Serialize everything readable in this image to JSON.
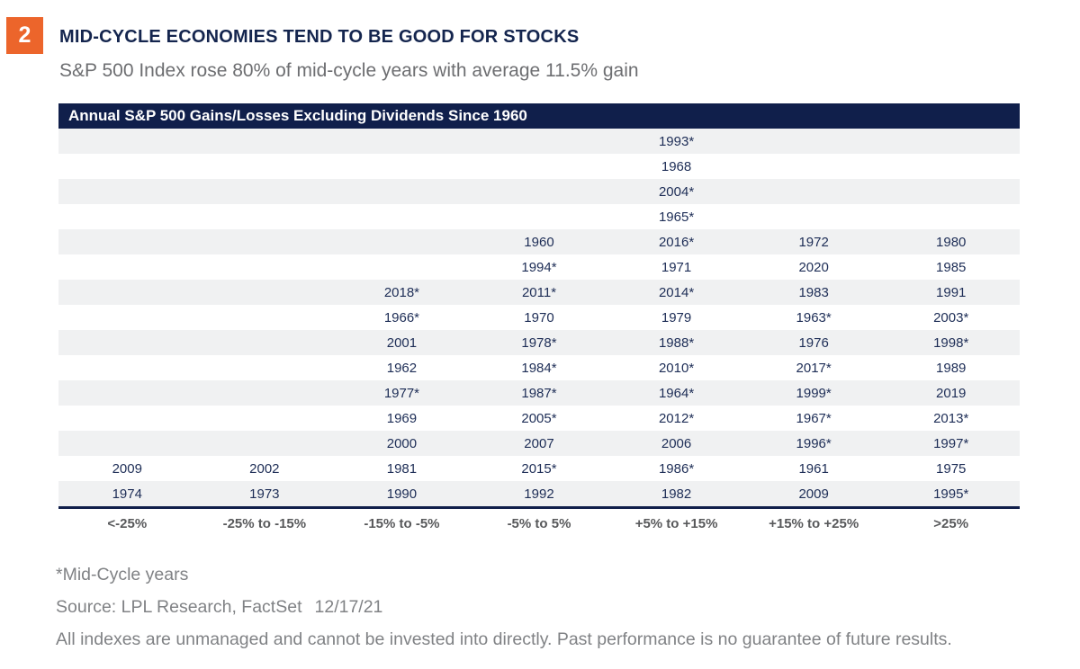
{
  "badge": {
    "number": "2"
  },
  "header": {
    "title": "MID-CYCLE ECONOMIES TEND TO BE GOOD FOR STOCKS",
    "subtitle": "S&P 500 Index rose 80% of mid-cycle years with average 11.5% gain"
  },
  "table": {
    "header": "Annual S&P 500 Gains/Losses Excluding Dividends Since 1960"
  },
  "chart_data": {
    "type": "table",
    "title": "Annual S&P 500 Gains/Losses Excluding Dividends Since 1960",
    "note": "* denotes Mid-Cycle years",
    "bin_labels": [
      "<-25%",
      "-25% to -15%",
      "-15% to -5%",
      "-5% to 5%",
      "+5% to +15%",
      "+15% to +25%",
      ">25%"
    ],
    "grid": [
      [
        "",
        "",
        "",
        "",
        "1993*",
        "",
        ""
      ],
      [
        "",
        "",
        "",
        "",
        "1968",
        "",
        ""
      ],
      [
        "",
        "",
        "",
        "",
        "2004*",
        "",
        ""
      ],
      [
        "",
        "",
        "",
        "",
        "1965*",
        "",
        ""
      ],
      [
        "",
        "",
        "",
        "1960",
        "2016*",
        "1972",
        "1980"
      ],
      [
        "",
        "",
        "",
        "1994*",
        "1971",
        "2020",
        "1985"
      ],
      [
        "",
        "",
        "2018*",
        "2011*",
        "2014*",
        "1983",
        "1991"
      ],
      [
        "",
        "",
        "1966*",
        "1970",
        "1979",
        "1963*",
        "2003*"
      ],
      [
        "",
        "",
        "2001",
        "1978*",
        "1988*",
        "1976",
        "1998*"
      ],
      [
        "",
        "",
        "1962",
        "1984*",
        "2010*",
        "2017*",
        "1989"
      ],
      [
        "",
        "",
        "1977*",
        "1987*",
        "1964*",
        "1999*",
        "2019"
      ],
      [
        "",
        "",
        "1969",
        "2005*",
        "2012*",
        "1967*",
        "2013*"
      ],
      [
        "",
        "",
        "2000",
        "2007",
        "2006",
        "1996*",
        "1997*"
      ],
      [
        "2009",
        "2002",
        "1981",
        "2015*",
        "1986*",
        "1961",
        "1975"
      ],
      [
        "1974",
        "1973",
        "1990",
        "1992",
        "1982",
        "2009",
        "1995*"
      ]
    ],
    "bins": [
      {
        "label": "<-25%",
        "years": [
          "2009",
          "1974"
        ]
      },
      {
        "label": "-25% to -15%",
        "years": [
          "2002",
          "1973"
        ]
      },
      {
        "label": "-15% to -5%",
        "years": [
          "2018*",
          "1966*",
          "2001",
          "1962",
          "1977*",
          "1969",
          "2000",
          "1981",
          "1990"
        ]
      },
      {
        "label": "-5% to 5%",
        "years": [
          "1960",
          "1994*",
          "2011*",
          "1970",
          "1978*",
          "1984*",
          "1987*",
          "2005*",
          "2007",
          "2015*",
          "1992"
        ]
      },
      {
        "label": "+5% to +15%",
        "years": [
          "1993*",
          "1968",
          "2004*",
          "1965*",
          "2016*",
          "1971",
          "2014*",
          "1979",
          "1988*",
          "2010*",
          "1964*",
          "2012*",
          "2006",
          "1986*",
          "1982"
        ]
      },
      {
        "label": "+15% to +25%",
        "years": [
          "1972",
          "2020",
          "1983",
          "1963*",
          "1976",
          "2017*",
          "1999*",
          "1967*",
          "1996*",
          "1961",
          "2009"
        ]
      },
      {
        "label": ">25%",
        "years": [
          "1980",
          "1985",
          "1991",
          "2003*",
          "1998*",
          "1989",
          "2019",
          "2013*",
          "1997*",
          "1975",
          "1995*"
        ]
      }
    ],
    "legend_position": "none",
    "grid_lines": "row-stripes"
  },
  "footnotes": {
    "midcycle": "*Mid-Cycle years",
    "source_label": "Source: LPL Research, FactSet",
    "source_date": "12/17/21",
    "disclaimer": "All indexes are unmanaged and cannot be invested into directly. Past performance is no guarantee of future results."
  },
  "colors": {
    "accent_orange": "#EC652B",
    "navy": "#101F4B",
    "stripe_gray": "#F0F1F2",
    "year_text": "#1D2D56",
    "note_gray": "#808285",
    "bin_label_gray": "#58595B"
  }
}
